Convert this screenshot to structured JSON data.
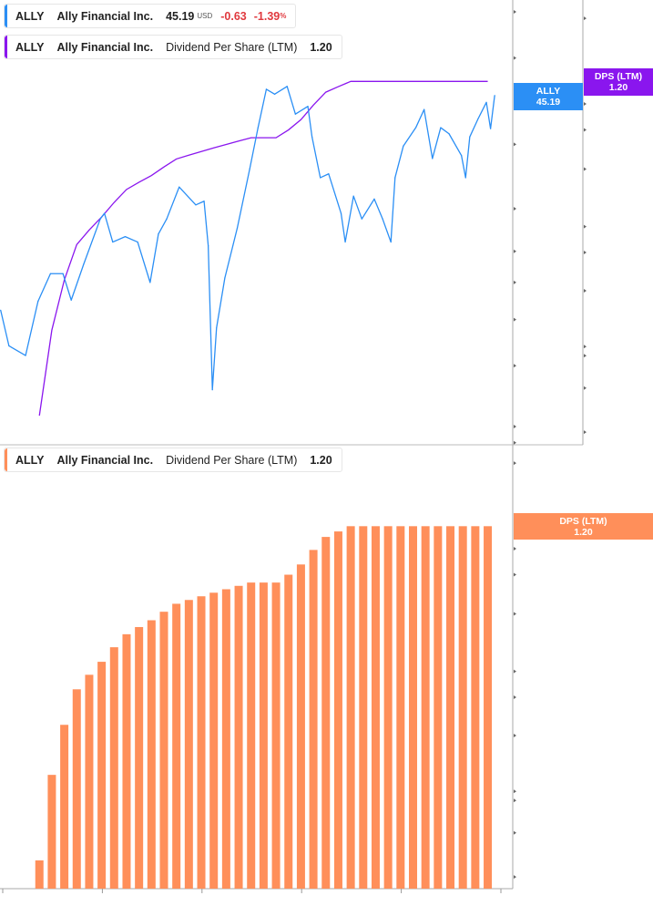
{
  "legends": {
    "price": {
      "ticker": "ALLY",
      "name": "Ally Financial Inc.",
      "price": "45.19",
      "currency": "USD",
      "change": "-0.63",
      "change_pct": "-1.39",
      "pct_sign": "%",
      "color": "#2b8ff5"
    },
    "dps_top": {
      "ticker": "ALLY",
      "name": "Ally Financial Inc.",
      "metric": "Dividend Per Share (LTM)",
      "value": "1.20",
      "color": "#8a16ee"
    },
    "dps_bottom": {
      "ticker": "ALLY",
      "name": "Ally Financial Inc.",
      "metric": "Dividend Per Share (LTM)",
      "value": "1.20",
      "color": "#ff8f5a"
    }
  },
  "tags": {
    "price": {
      "line1": "ALLY",
      "line2": "45.19"
    },
    "dps_top": {
      "line1": "DPS (LTM)",
      "line2": "1.20"
    },
    "dps_bottom": {
      "line1": "DPS (LTM)",
      "line2": "1.20"
    }
  },
  "chart_data": [
    {
      "type": "line",
      "scale": "log",
      "series": [
        {
          "name": "ALLY",
          "axis": "price",
          "color": "#2b8ff5",
          "x": [
            "2015-12",
            "2016-02",
            "2016-06",
            "2016-09",
            "2016-12",
            "2017-03",
            "2017-05",
            "2017-08",
            "2017-12",
            "2018-01",
            "2018-03",
            "2018-06",
            "2018-09",
            "2018-12",
            "2019-02",
            "2019-04",
            "2019-07",
            "2019-11",
            "2020-01",
            "2020-02",
            "2020-03",
            "2020-04",
            "2020-06",
            "2020-09",
            "2020-12",
            "2021-02",
            "2021-04",
            "2021-06",
            "2021-09",
            "2021-11",
            "2022-02",
            "2022-03",
            "2022-05",
            "2022-07",
            "2022-10",
            "2022-11",
            "2023-01",
            "2023-03",
            "2023-06",
            "2023-08",
            "2023-10",
            "2023-11",
            "2024-01",
            "2024-04",
            "2024-06",
            "2024-08",
            "2024-10",
            "2024-12",
            "2025-03",
            "2025-04",
            "2025-05",
            "2025-07",
            "2025-09",
            "2025-10",
            "2025-11"
          ],
          "y": [
            14.7,
            12.2,
            11.6,
            15.4,
            17.8,
            17.8,
            15.5,
            18.7,
            23.7,
            24.4,
            21.0,
            21.6,
            21.0,
            17.0,
            21.9,
            23.7,
            28.0,
            25.5,
            26.0,
            20.6,
            9.7,
            13.4,
            17.4,
            22.6,
            30.8,
            38.2,
            46.7,
            45.5,
            47.4,
            41.0,
            42.7,
            36.4,
            29.4,
            30.0,
            24.4,
            21.0,
            26.7,
            23.7,
            26.3,
            23.7,
            21.0,
            29.4,
            34.7,
            38.2,
            42.0,
            32.5,
            38.2,
            37.0,
            33.0,
            29.4,
            36.4,
            40.0,
            43.6,
            38.0,
            45.2
          ]
        },
        {
          "name": "Dividend Per Share (LTM)",
          "axis": "dps",
          "color": "#8a16ee",
          "ref": "dps"
        }
      ],
      "price_axis": {
        "ticks": [
          "70.00",
          "55.00",
          "35.00",
          "25.00",
          "20.00",
          "17.00",
          "14.00",
          "11.00",
          "8.00",
          "7.35"
        ],
        "range": [
          7.35,
          70
        ]
      },
      "dps_axis": {
        "ticks": [
          "2.00",
          "1.00",
          "0.81",
          "0.59",
          "0.37",
          "0.30",
          "0.22",
          "0.14",
          "0.13",
          "0.10",
          "0.07"
        ]
      }
    },
    {
      "type": "bar",
      "scale": "log",
      "id": "dps",
      "color": "#ff8f5a",
      "x": [
        "2016-09",
        "2016-12",
        "2017-03",
        "2017-06",
        "2017-09",
        "2017-12",
        "2018-03",
        "2018-06",
        "2018-09",
        "2018-12",
        "2019-03",
        "2019-06",
        "2019-09",
        "2019-12",
        "2020-03",
        "2020-06",
        "2020-09",
        "2020-12",
        "2021-03",
        "2021-06",
        "2021-09",
        "2021-12",
        "2022-03",
        "2022-06",
        "2022-09",
        "2022-12",
        "2023-03",
        "2023-06",
        "2023-09",
        "2023-12",
        "2024-03",
        "2024-06",
        "2024-09",
        "2024-12",
        "2025-03",
        "2025-06",
        "2025-09"
      ],
      "values": [
        0.08,
        0.16,
        0.24,
        0.32,
        0.36,
        0.4,
        0.45,
        0.5,
        0.53,
        0.56,
        0.6,
        0.64,
        0.66,
        0.68,
        0.7,
        0.72,
        0.74,
        0.76,
        0.76,
        0.76,
        0.81,
        0.88,
        0.99,
        1.1,
        1.15,
        1.2,
        1.2,
        1.2,
        1.2,
        1.2,
        1.2,
        1.2,
        1.2,
        1.2,
        1.2,
        1.2,
        1.2
      ],
      "y_ticks": [
        "2.00",
        "1.00",
        "0.81",
        "0.59",
        "0.37",
        "0.30",
        "0.22",
        "0.14",
        "0.13",
        "0.10",
        "0.07"
      ],
      "x_ticks": [
        "2016",
        "2018",
        "2020",
        "2022",
        "2024",
        "2026"
      ]
    }
  ]
}
